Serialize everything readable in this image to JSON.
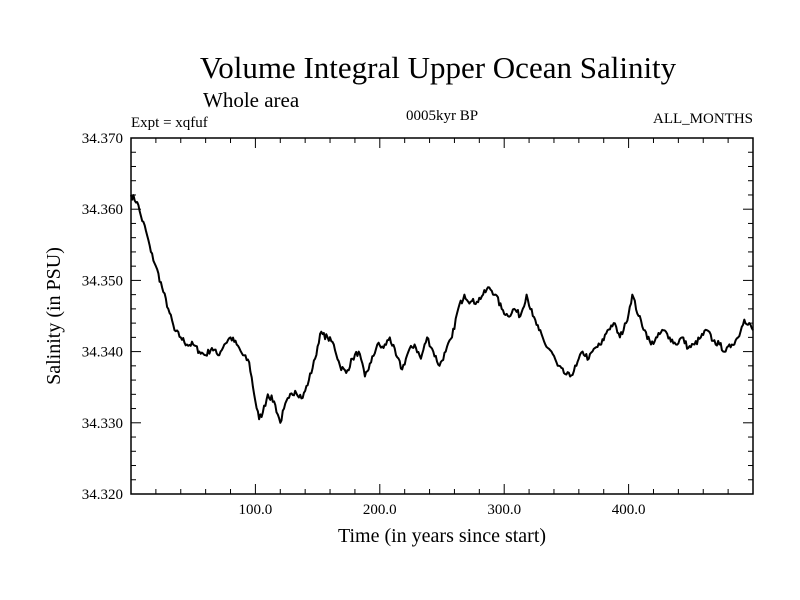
{
  "chart_data": {
    "type": "line",
    "title": "Volume Integral Upper Ocean Salinity",
    "subtitle": "Whole area",
    "left_label": "Expt = xqfuf",
    "center_label": "0005kyr BP",
    "right_label": "ALL_MONTHS",
    "xlabel": "Time (in years since start)",
    "ylabel": "Salinity (in PSU)",
    "xlim": [
      0,
      500
    ],
    "ylim": [
      34.32,
      34.37
    ],
    "x_ticks": [
      100,
      200,
      300,
      400
    ],
    "x_tick_labels": [
      "100.0",
      "200.0",
      "300.0",
      "400.0"
    ],
    "y_ticks": [
      34.32,
      34.33,
      34.34,
      34.35,
      34.36,
      34.37
    ],
    "y_tick_labels": [
      "34.320",
      "34.330",
      "34.340",
      "34.350",
      "34.360",
      "34.370"
    ],
    "grid": false,
    "series": [
      {
        "name": "salinity",
        "color": "#000000",
        "x": [
          0,
          5,
          8,
          12,
          16,
          20,
          25,
          30,
          35,
          40,
          45,
          50,
          55,
          60,
          65,
          70,
          75,
          80,
          85,
          90,
          95,
          100,
          103,
          106,
          110,
          115,
          120,
          123,
          127,
          132,
          138,
          143,
          148,
          152,
          158,
          163,
          168,
          173,
          178,
          183,
          188,
          193,
          198,
          203,
          208,
          213,
          218,
          223,
          228,
          233,
          238,
          243,
          248,
          253,
          258,
          263,
          268,
          273,
          278,
          283,
          288,
          293,
          298,
          303,
          308,
          313,
          318,
          323,
          328,
          333,
          338,
          343,
          348,
          353,
          358,
          363,
          368,
          373,
          378,
          383,
          388,
          393,
          398,
          403,
          408,
          413,
          418,
          423,
          428,
          433,
          438,
          443,
          448,
          453,
          458,
          463,
          468,
          473,
          478,
          483,
          488,
          493,
          497,
          500
        ],
        "values": [
          34.362,
          34.361,
          34.359,
          34.357,
          34.354,
          34.352,
          34.349,
          34.346,
          34.343,
          34.342,
          34.341,
          34.341,
          34.34,
          34.3395,
          34.3405,
          34.3395,
          34.341,
          34.342,
          34.341,
          34.3395,
          34.3385,
          34.333,
          34.3305,
          34.3315,
          34.334,
          34.333,
          34.33,
          34.332,
          34.3335,
          34.3345,
          34.3335,
          34.336,
          34.339,
          34.3425,
          34.342,
          34.341,
          34.338,
          34.337,
          34.339,
          34.34,
          34.3365,
          34.3385,
          34.341,
          34.3405,
          34.342,
          34.3395,
          34.3375,
          34.34,
          34.341,
          34.339,
          34.342,
          34.34,
          34.338,
          34.34,
          34.342,
          34.346,
          34.348,
          34.347,
          34.347,
          34.348,
          34.349,
          34.348,
          34.346,
          34.345,
          34.346,
          34.345,
          34.348,
          34.345,
          34.343,
          34.341,
          34.34,
          34.338,
          34.337,
          34.3365,
          34.338,
          34.34,
          34.339,
          34.3405,
          34.341,
          34.343,
          34.344,
          34.342,
          34.344,
          34.348,
          34.345,
          34.343,
          34.341,
          34.342,
          34.343,
          34.342,
          34.341,
          34.342,
          34.3405,
          34.341,
          34.342,
          34.343,
          34.3415,
          34.341,
          34.34,
          34.341,
          34.342,
          34.3445,
          34.344,
          34.343
        ]
      }
    ]
  }
}
